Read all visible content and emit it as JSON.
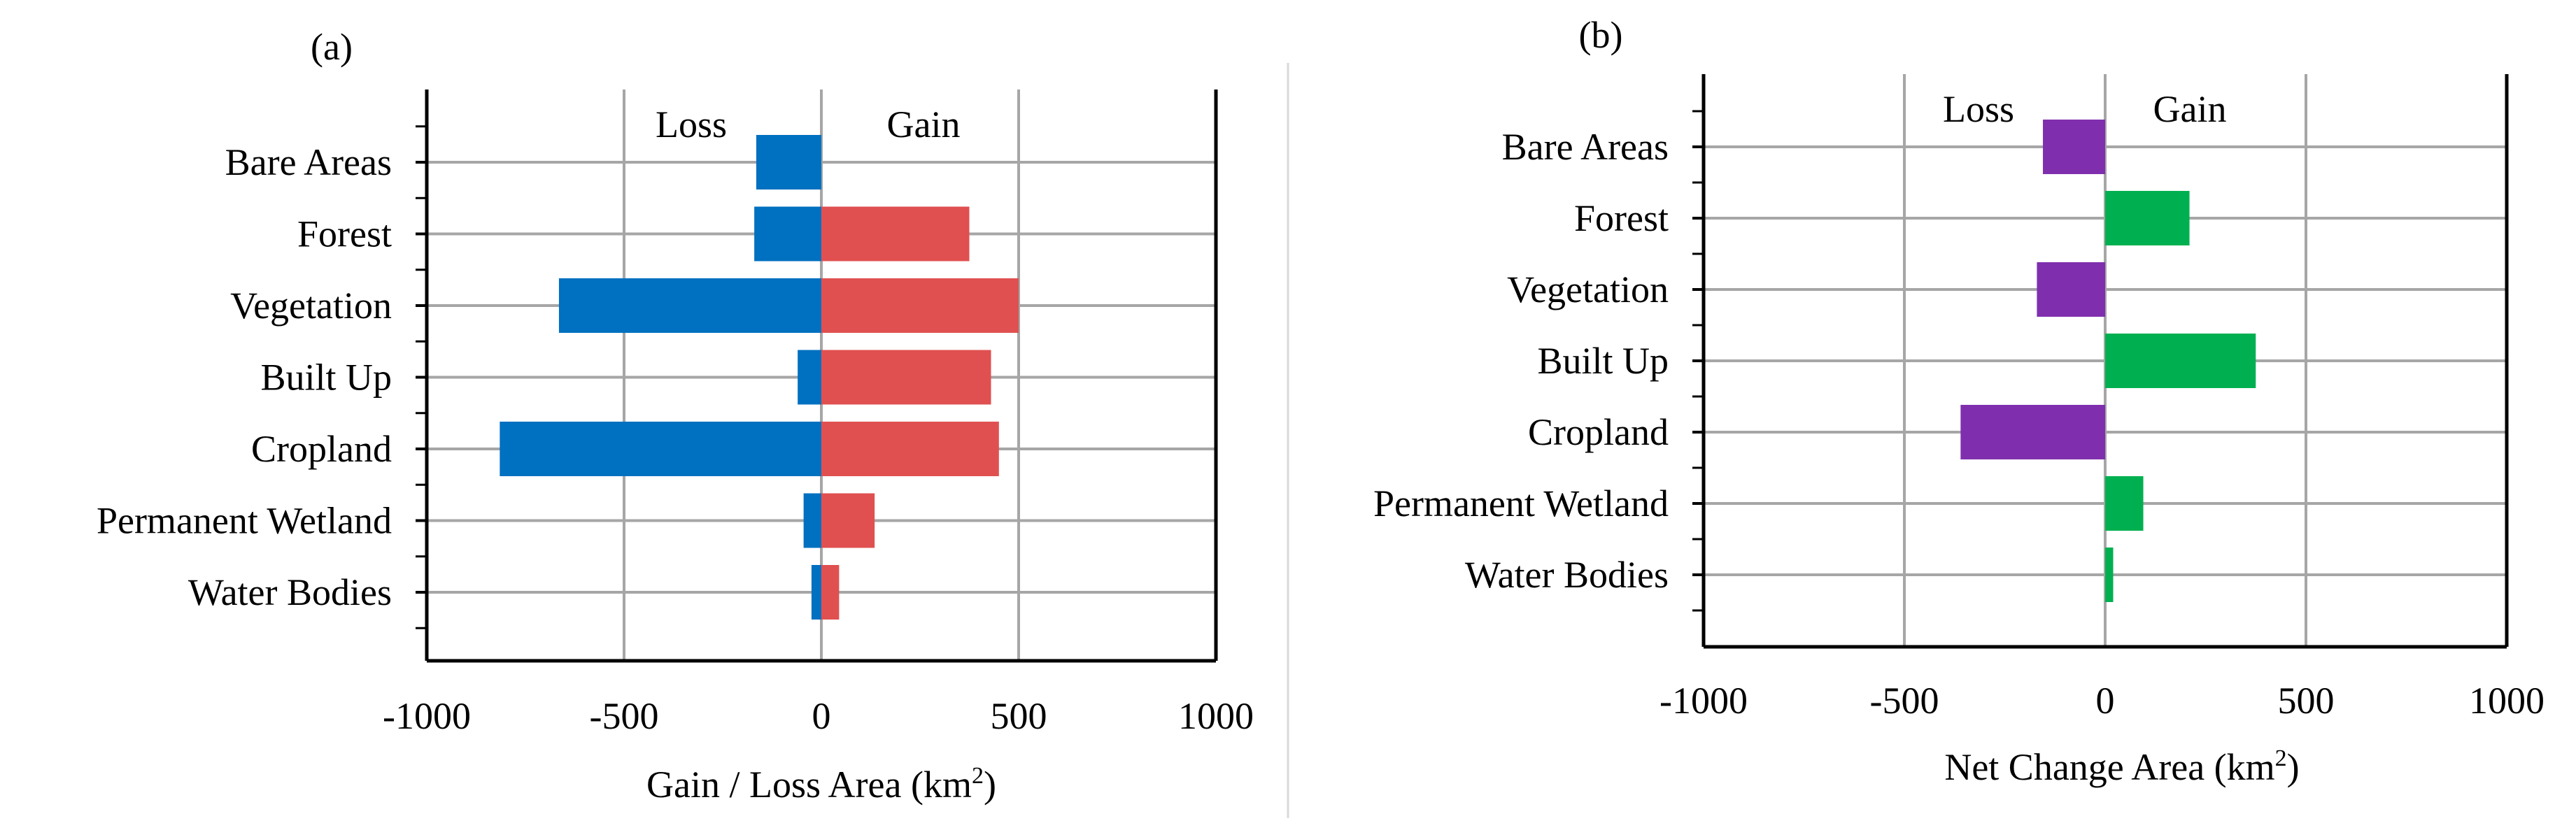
{
  "colors": {
    "loss": "#0070C0",
    "gain": "#E05050",
    "net_loss": "#7F2FAE",
    "net_gain": "#00B050",
    "grid": "#A6A6A6",
    "axis": "#000000"
  },
  "chart_data": [
    {
      "type": "bar",
      "orientation": "horizontal",
      "panel_label": "(a)",
      "title": "",
      "xlabel_main": "Gain / Loss Area (km",
      "xlabel_sup": "2",
      "xlabel_end": ")",
      "xlim": [
        -1000,
        1000
      ],
      "xticks": [
        "-1000",
        "-500",
        "0",
        "500",
        "1000"
      ],
      "xtick_values": [
        -1000,
        -500,
        0,
        500,
        1000
      ],
      "annotations": {
        "left": "Loss",
        "right": "Gain"
      },
      "categories": [
        "Bare Areas",
        "Forest",
        "Vegetation",
        "Built Up",
        "Cropland",
        "Permanent Wetland",
        "Water Bodies"
      ],
      "series": [
        {
          "name": "Loss",
          "values": [
            -165,
            -170,
            -665,
            -60,
            -815,
            -45,
            -25
          ]
        },
        {
          "name": "Gain",
          "values": [
            0,
            375,
            500,
            430,
            450,
            135,
            45
          ]
        }
      ]
    },
    {
      "type": "bar",
      "orientation": "horizontal",
      "panel_label": "(b)",
      "title": "",
      "xlabel_main": "Net Change Area (km",
      "xlabel_sup": "2",
      "xlabel_end": ")",
      "xlim": [
        -1000,
        1000
      ],
      "xticks": [
        "-1000",
        "-500",
        "0",
        "500",
        "1000"
      ],
      "xtick_values": [
        -1000,
        -500,
        0,
        500,
        1000
      ],
      "annotations": {
        "left": "Loss",
        "right": "Gain"
      },
      "categories": [
        "Bare Areas",
        "Forest",
        "Vegetation",
        "Built Up",
        "Cropland",
        "Permanent Wetland",
        "Water Bodies"
      ],
      "series": [
        {
          "name": "Net Change",
          "values": [
            -155,
            210,
            -170,
            375,
            -360,
            95,
            20
          ]
        }
      ]
    }
  ]
}
